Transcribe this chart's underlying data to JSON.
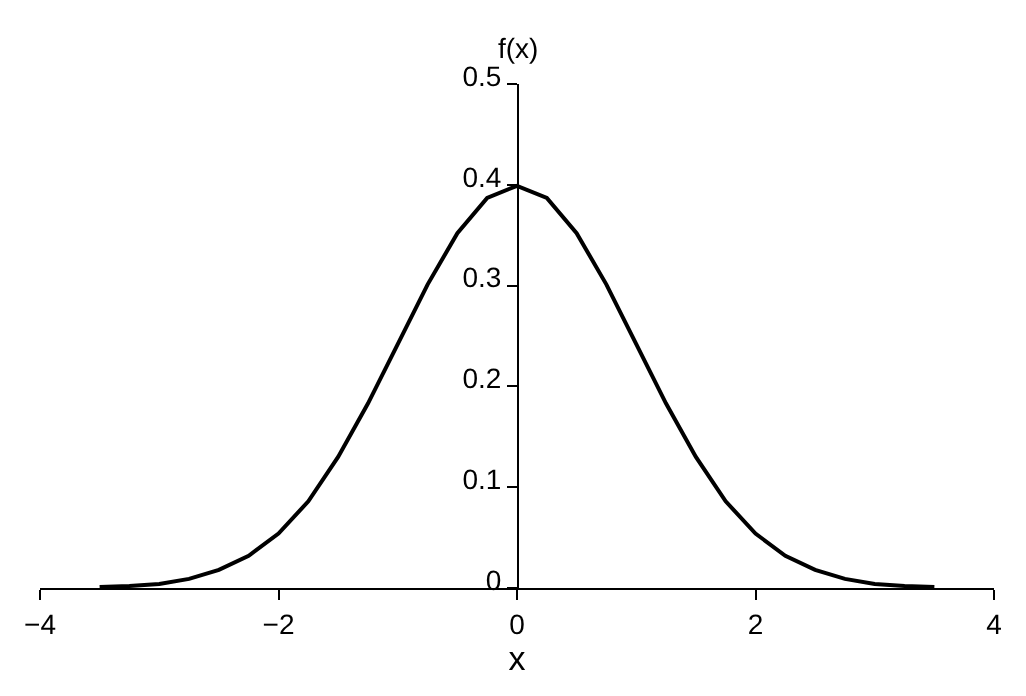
{
  "chart_data": {
    "type": "line",
    "xlabel": "x",
    "ylabel": "f(x)",
    "x": [
      -3.5,
      -3.25,
      -3,
      -2.75,
      -2.5,
      -2.25,
      -2,
      -1.75,
      -1.5,
      -1.25,
      -1,
      -0.75,
      -0.5,
      -0.25,
      0,
      0.25,
      0.5,
      0.75,
      1,
      1.25,
      1.5,
      1.75,
      2,
      2.25,
      2.5,
      2.75,
      3,
      3.25,
      3.5
    ],
    "series": [
      {
        "color": "#000000",
        "values": [
          0.001,
          0.002,
          0.004,
          0.009,
          0.018,
          0.032,
          0.054,
          0.086,
          0.13,
          0.183,
          0.242,
          0.301,
          0.352,
          0.387,
          0.399,
          0.387,
          0.352,
          0.301,
          0.242,
          0.183,
          0.13,
          0.086,
          0.054,
          0.032,
          0.018,
          0.009,
          0.004,
          0.002,
          0.001
        ]
      }
    ],
    "xlim": [
      -4,
      4
    ],
    "ylim": [
      0,
      0.5
    ],
    "xticks": [
      -4,
      -2,
      0,
      2,
      4
    ],
    "yticks": [
      0,
      0.1,
      0.2,
      0.3,
      0.4,
      0.5
    ],
    "legend": false,
    "marker": "none",
    "line_style": "solid"
  }
}
